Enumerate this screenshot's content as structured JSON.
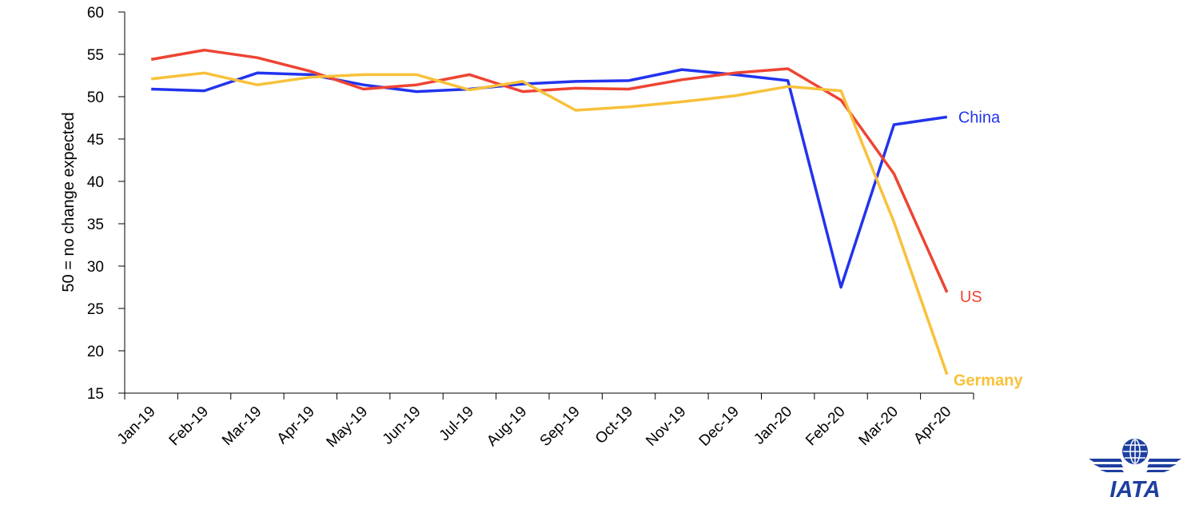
{
  "chart_data": {
    "type": "line",
    "title": "",
    "xlabel": "",
    "ylabel": "50 = no change expected",
    "ylim": [
      15,
      60
    ],
    "yticks": [
      15,
      20,
      25,
      30,
      35,
      40,
      45,
      50,
      55,
      60
    ],
    "grid": false,
    "legend": "inline labels at line ends",
    "categories": [
      "Jan-19",
      "Feb-19",
      "Mar-19",
      "Apr-19",
      "May-19",
      "Jun-19",
      "Jul-19",
      "Aug-19",
      "Sep-19",
      "Oct-19",
      "Nov-19",
      "Dec-19",
      "Jan-20",
      "Feb-20",
      "Mar-20",
      "Apr-20"
    ],
    "series": [
      {
        "name": "China",
        "color": "#2233ee",
        "values": [
          50.9,
          50.7,
          52.8,
          52.6,
          51.4,
          50.6,
          50.9,
          51.5,
          51.8,
          51.9,
          53.2,
          52.6,
          51.9,
          27.5,
          46.7,
          47.6
        ]
      },
      {
        "name": "US",
        "color": "#ee4433",
        "values": [
          54.4,
          55.5,
          54.6,
          53.0,
          50.9,
          51.4,
          52.6,
          50.6,
          51.0,
          50.9,
          52.0,
          52.8,
          53.3,
          49.6,
          40.9,
          26.9
        ]
      },
      {
        "name": "Germany",
        "color": "#f8c13a",
        "values": [
          52.1,
          52.8,
          51.4,
          52.3,
          52.6,
          52.6,
          50.8,
          51.8,
          48.4,
          48.8,
          49.4,
          50.1,
          51.2,
          50.7,
          35.2,
          17.2
        ]
      }
    ]
  },
  "logo": {
    "text": "IATA",
    "icon": "globe-icon",
    "color": "#1e3fa0"
  }
}
